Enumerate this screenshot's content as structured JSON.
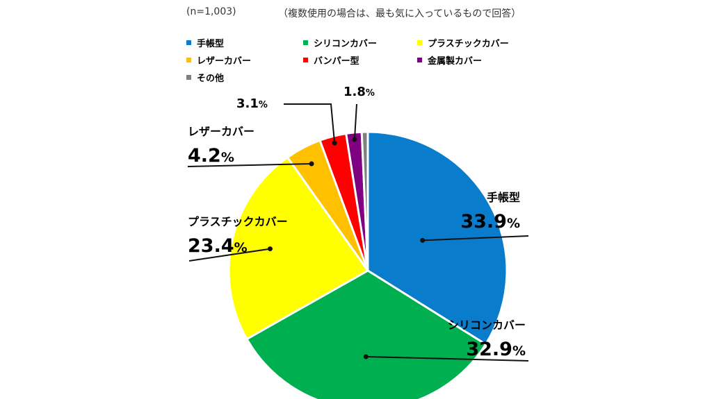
{
  "header": {
    "sample_note": "(n=1,003)",
    "question_note": "（複数使用の場合は、最も気に入っているもので回答）"
  },
  "colors": {
    "techou": "#0a7ccc",
    "silicone": "#00b050",
    "plastic": "#ffff00",
    "leather": "#ffc000",
    "bumper": "#ff0000",
    "metal": "#7f0080",
    "other": "#808080"
  },
  "chart_data": {
    "type": "pie",
    "start_angle": "12 o'clock",
    "direction": "clockwise",
    "slices": [
      {
        "label": "手帳型",
        "value": 33.9,
        "display": "33.9",
        "color": "#0a7ccc"
      },
      {
        "label": "シリコンカバー",
        "value": 32.9,
        "display": "32.9",
        "color": "#00b050"
      },
      {
        "label": "プラスチックカバー",
        "value": 23.4,
        "display": "23.4",
        "color": "#ffff00"
      },
      {
        "label": "レザーカバー",
        "value": 4.2,
        "display": "4.2",
        "color": "#ffc000"
      },
      {
        "label": "バンパー型",
        "value": 3.1,
        "display": "3.1",
        "color": "#ff0000"
      },
      {
        "label": "金属製カバー",
        "value": 1.8,
        "display": "1.8",
        "color": "#7f0080"
      },
      {
        "label": "その他",
        "value": 0.7,
        "color": "#808080"
      }
    ],
    "unit": "%"
  }
}
